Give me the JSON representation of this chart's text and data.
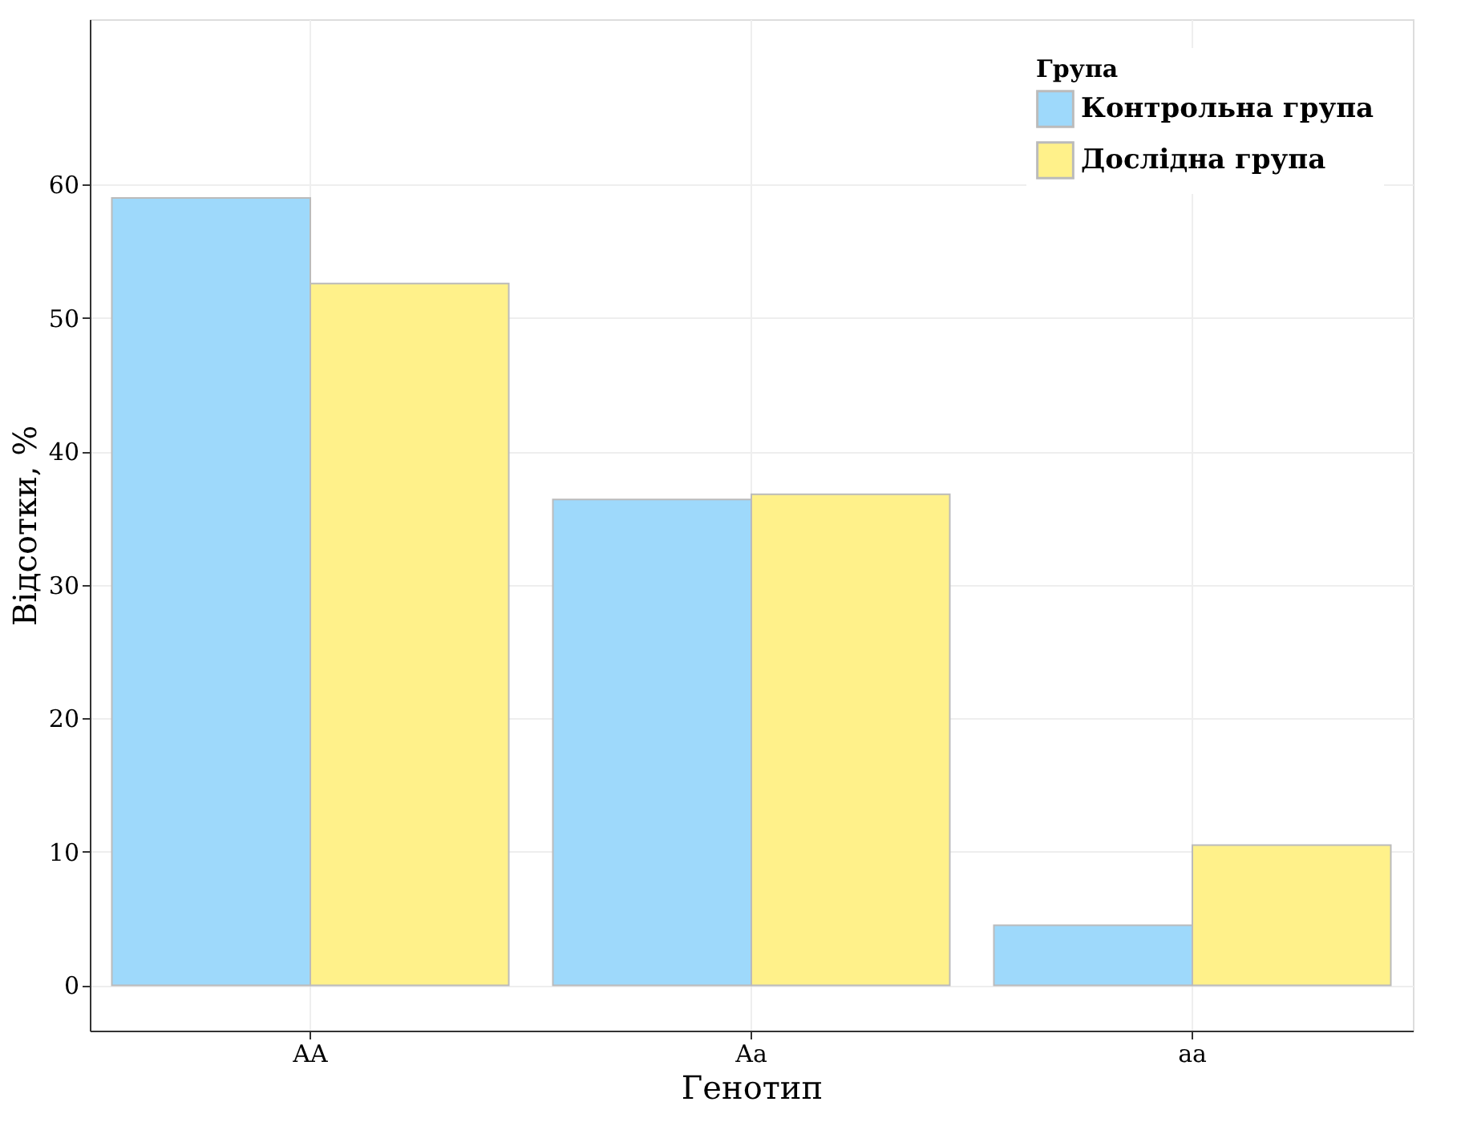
{
  "chart_data": {
    "type": "bar",
    "xlabel": "Генотип",
    "ylabel": "Відсотки, %",
    "legend_title": "Група",
    "categories": [
      "AA",
      "Aa",
      "aa"
    ],
    "series": [
      {
        "name": "Контрольна група",
        "color": "#9ed9fb",
        "values": [
          59.0,
          36.4,
          4.5
        ]
      },
      {
        "name": "Дослідна група",
        "color": "#fff18a",
        "values": [
          52.6,
          36.8,
          10.5
        ]
      }
    ],
    "ylim": [
      -3.4,
      72.4
    ],
    "yticks": [
      0,
      10,
      20,
      30,
      40,
      50,
      60
    ],
    "grid": true,
    "legend": "top right"
  }
}
